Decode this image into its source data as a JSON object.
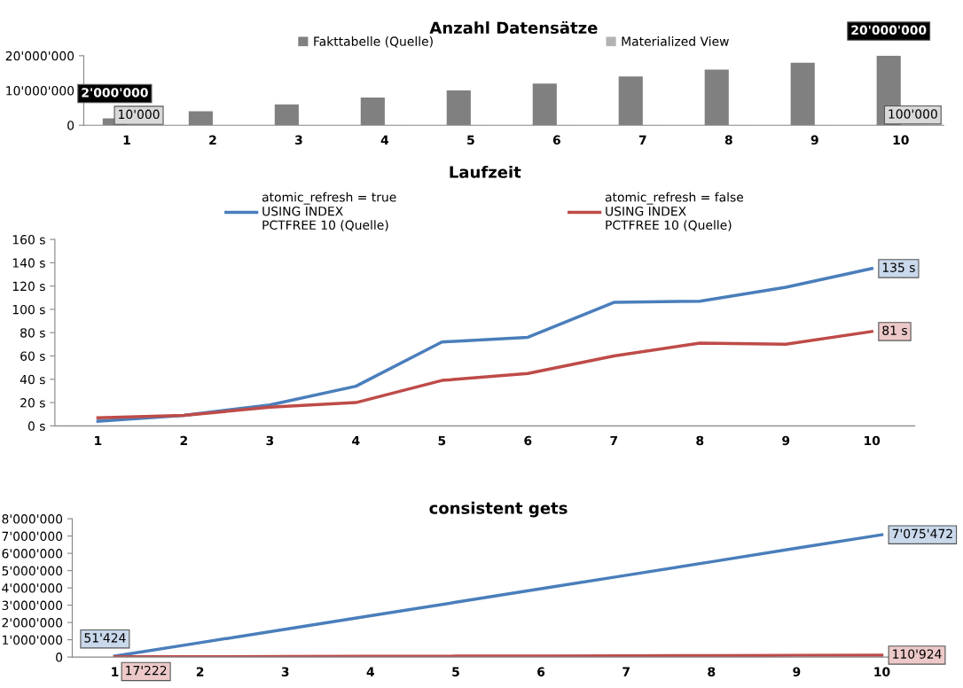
{
  "chart_data": [
    {
      "type": "bar",
      "title": "Anzahl Datensätze",
      "categories": [
        "1",
        "2",
        "3",
        "4",
        "5",
        "6",
        "7",
        "8",
        "9",
        "10"
      ],
      "series": [
        {
          "name": "Fakttabelle (Quelle)",
          "color": "#808080",
          "values": [
            2000000,
            4000000,
            6000000,
            8000000,
            10000000,
            12000000,
            14000000,
            16000000,
            18000000,
            20000000
          ],
          "value_labels": [
            "2'000'000",
            null,
            null,
            null,
            null,
            null,
            null,
            null,
            null,
            "20'000'000"
          ]
        },
        {
          "name": "Materialized View",
          "color": "#b3b3b3",
          "values": [
            10000,
            20000,
            30000,
            40000,
            50000,
            60000,
            70000,
            80000,
            90000,
            100000
          ],
          "value_labels": [
            "10'000",
            null,
            null,
            null,
            null,
            null,
            null,
            null,
            null,
            "100'000"
          ]
        }
      ],
      "ylim": [
        0,
        20000000
      ],
      "yticks": [
        0,
        {
          "value": 10000000,
          "label": "10'000'000"
        },
        {
          "value": 20000000,
          "label": "20'000'000"
        }
      ],
      "legend": "top",
      "grid": false
    },
    {
      "type": "line",
      "title": "Laufzeit",
      "categories": [
        "1",
        "2",
        "3",
        "4",
        "5",
        "6",
        "7",
        "8",
        "9",
        "10"
      ],
      "series": [
        {
          "name": "atomic_refresh = true\nUSING INDEX\nPCTFREE 10 (Quelle)",
          "color": "#4a7ebb",
          "values": [
            4,
            9,
            18,
            34,
            72,
            76,
            106,
            107,
            119,
            135
          ],
          "value_labels": [
            null,
            null,
            null,
            null,
            null,
            null,
            null,
            null,
            null,
            "135 s"
          ]
        },
        {
          "name": "atomic_refresh = false\nUSING INDEX\nPCTFREE 10 (Quelle)",
          "color": "#be4b48",
          "values": [
            7,
            9,
            16,
            20,
            39,
            45,
            60,
            71,
            70,
            81
          ],
          "value_labels": [
            null,
            null,
            null,
            null,
            null,
            null,
            null,
            null,
            null,
            "81 s"
          ]
        }
      ],
      "ylim": [
        0,
        160
      ],
      "yticks": [
        {
          "value": 0,
          "label": "0 s"
        },
        {
          "value": 20,
          "label": "20 s"
        },
        {
          "value": 40,
          "label": "40 s"
        },
        {
          "value": 60,
          "label": "60 s"
        },
        {
          "value": 80,
          "label": "80 s"
        },
        {
          "value": 100,
          "label": "100 s"
        },
        {
          "value": 120,
          "label": "120 s"
        },
        {
          "value": 140,
          "label": "140 s"
        },
        {
          "value": 160,
          "label": "160 s"
        }
      ],
      "legend": "top",
      "grid": false,
      "marker": "none"
    },
    {
      "type": "line",
      "title": "consistent gets",
      "categories": [
        "1",
        "2",
        "3",
        "4",
        "5",
        "6",
        "7",
        "8",
        "9",
        "10"
      ],
      "series": [
        {
          "color": "#4a7ebb",
          "values": [
            51424,
            830000,
            1610000,
            2390000,
            3170000,
            3950000,
            4730000,
            5510000,
            6300000,
            7075472
          ],
          "value_labels": [
            "51'424",
            null,
            null,
            null,
            null,
            null,
            null,
            null,
            null,
            "7'075'472"
          ]
        },
        {
          "color": "#be4b48",
          "values": [
            17222,
            20000,
            30000,
            40000,
            50000,
            60000,
            70000,
            80000,
            100000,
            110924
          ],
          "value_labels": [
            "17'222",
            null,
            null,
            null,
            null,
            null,
            null,
            null,
            null,
            "110'924"
          ]
        }
      ],
      "ylim": [
        0,
        8000000
      ],
      "yticks": [
        0,
        {
          "value": 1000000,
          "label": "1'000'000"
        },
        {
          "value": 2000000,
          "label": "2'000'000"
        },
        {
          "value": 3000000,
          "label": "3'000'000"
        },
        {
          "value": 4000000,
          "label": "4'000'000"
        },
        {
          "value": 5000000,
          "label": "5'000'000"
        },
        {
          "value": 6000000,
          "label": "6'000'000"
        },
        {
          "value": 7000000,
          "label": "7'000'000"
        },
        {
          "value": 8000000,
          "label": "8'000'000"
        }
      ],
      "legend": false,
      "grid": false,
      "marker": "none"
    }
  ]
}
